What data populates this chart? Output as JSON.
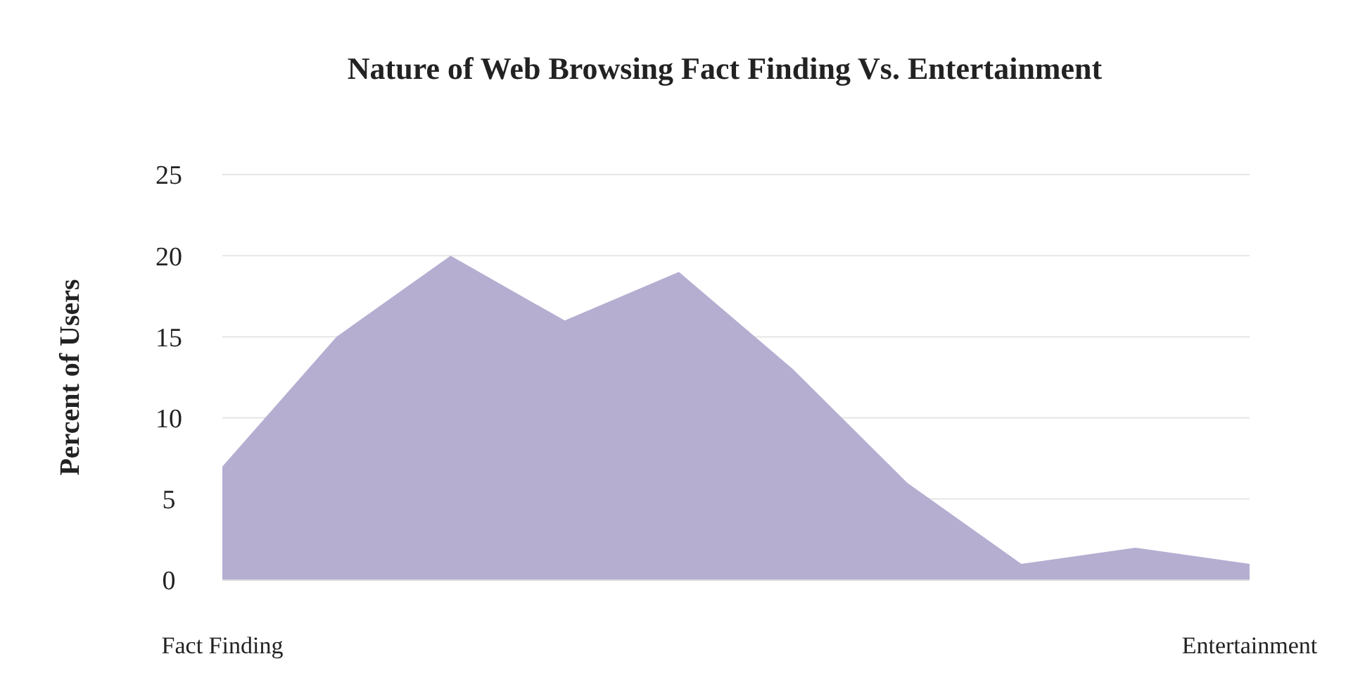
{
  "chart_data": {
    "type": "area",
    "title": "Nature of Web Browsing Fact Finding Vs. Entertainment",
    "ylabel": "Percent of Users",
    "categories": [
      "Fact Finding",
      null,
      null,
      null,
      null,
      null,
      null,
      null,
      null,
      "Entertainment"
    ],
    "values": [
      7,
      15,
      20,
      16,
      19,
      13,
      6,
      1,
      2,
      1
    ],
    "color": "#b5aed1",
    "ylim": [
      0,
      25
    ],
    "yticks": [
      0,
      5,
      10,
      15,
      20,
      25
    ],
    "grid": "y"
  }
}
